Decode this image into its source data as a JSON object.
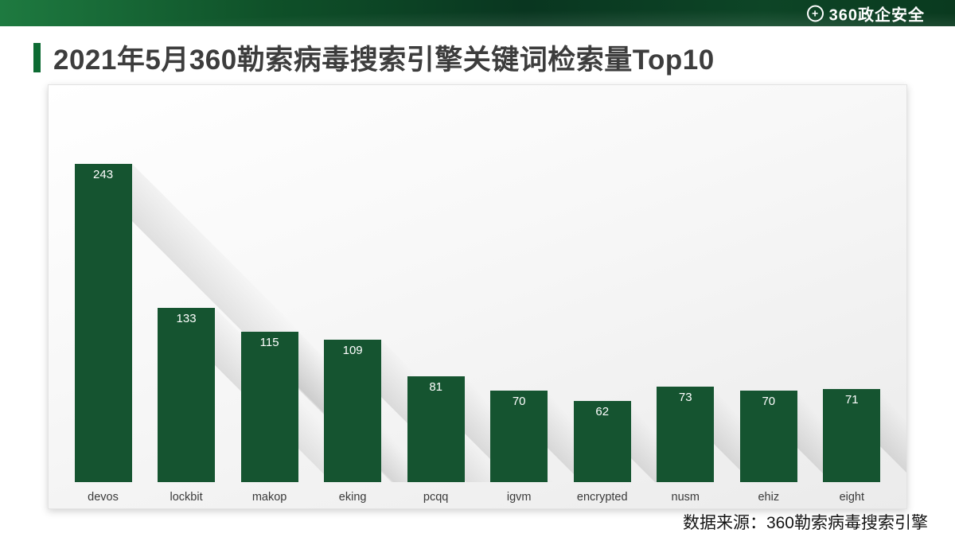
{
  "header": {
    "logo_plus": "+",
    "logo_text": "360政企安全"
  },
  "page": {
    "title": "2021年5月360勒索病毒搜索引擎关键词检索量Top10",
    "source": "数据来源：360勒索病毒搜索引擎"
  },
  "colors": {
    "bar": "#155430",
    "title_accent": "#0d6b33",
    "header_green_dark": "#093620",
    "header_green_light": "#1e7a40",
    "value_label": "#ffffff"
  },
  "chart_data": {
    "type": "bar",
    "title": "2021年5月360勒索病毒搜索引擎关键词检索量Top10",
    "categories": [
      "devos",
      "lockbit",
      "makop",
      "eking",
      "pcqq",
      "igvm",
      "encrypted",
      "nusm",
      "ehiz",
      "eight"
    ],
    "values": [
      243,
      133,
      115,
      109,
      81,
      70,
      62,
      73,
      70,
      71
    ],
    "xlabel": "",
    "ylabel": "",
    "ylim": [
      0,
      260
    ],
    "grid": false,
    "legend": false,
    "axes_hidden": true,
    "value_labels": "inside-top-white",
    "bar_color": "#155430",
    "source": "数据来源：360勒索病毒搜索引擎"
  }
}
